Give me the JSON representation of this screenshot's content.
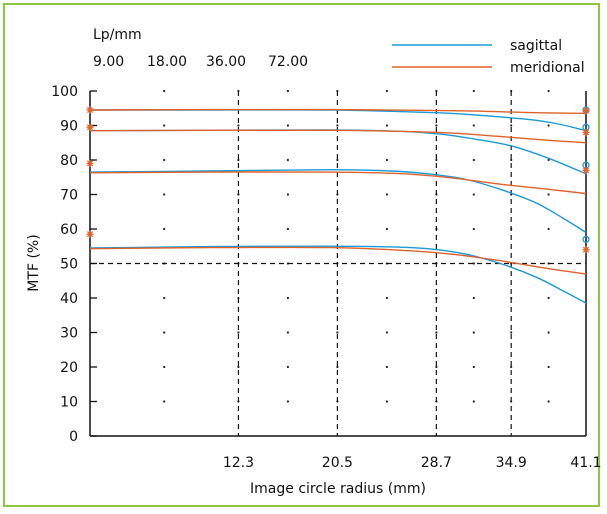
{
  "chart_data": {
    "type": "line",
    "xlabel": "Image circle radius (mm)",
    "ylabel": "MTF (%)",
    "xlim": [
      0,
      41.1
    ],
    "ylim": [
      0,
      100
    ],
    "y_ticks": [
      0,
      10,
      20,
      30,
      40,
      50,
      60,
      70,
      80,
      90,
      100
    ],
    "x_ticks": [
      12.3,
      20.5,
      28.7,
      34.9,
      41.1
    ],
    "x_tick_labels": [
      "12.3",
      "20.5",
      "28.7",
      "34.9",
      "41.1"
    ],
    "threshold": 50,
    "vertical_dashed": [
      12.3,
      20.5,
      28.7,
      34.9
    ],
    "frequency_header": "Lp/mm",
    "frequencies": [
      "9.00",
      "18.00",
      "36.00",
      "72.00"
    ],
    "legend": [
      {
        "name": "sagittal",
        "color": "#1a9ad6"
      },
      {
        "name": "meridional",
        "color": "#e0622a"
      }
    ],
    "series": [
      {
        "type": "sagittal",
        "x": [
          0,
          10,
          20,
          26,
          30,
          34,
          37,
          39,
          41.1
        ],
        "y": [
          94.5,
          94.5,
          94.5,
          94,
          93.5,
          92.5,
          91.5,
          90.3,
          88.5
        ]
      },
      {
        "type": "meridional",
        "x": [
          0,
          10,
          20,
          30,
          36,
          41.1
        ],
        "y": [
          94.5,
          94.6,
          94.6,
          94.3,
          93.8,
          93.5
        ]
      },
      {
        "type": "sagittal",
        "x": [
          0,
          10,
          20,
          26,
          29,
          32,
          35,
          38,
          41.1
        ],
        "y": [
          88.5,
          88.6,
          88.7,
          88.3,
          87.5,
          86,
          84,
          80.5,
          76
        ]
      },
      {
        "type": "meridional",
        "x": [
          0,
          10,
          20,
          26,
          30,
          34,
          38,
          41.1
        ],
        "y": [
          88.5,
          88.6,
          88.6,
          88.3,
          87.8,
          86.8,
          85.7,
          85
        ]
      },
      {
        "type": "sagittal",
        "x": [
          0,
          10,
          20,
          25,
          28,
          31,
          34,
          37,
          39.5,
          41.1
        ],
        "y": [
          76.5,
          76.8,
          77.2,
          76.8,
          76,
          74.5,
          71.5,
          67.5,
          62.5,
          59
        ]
      },
      {
        "type": "meridional",
        "x": [
          0,
          10,
          20,
          26,
          30,
          34,
          38,
          41.1
        ],
        "y": [
          76.3,
          76.5,
          76.5,
          76,
          74.8,
          73,
          71.5,
          70.3
        ]
      },
      {
        "type": "sagittal",
        "x": [
          0,
          10,
          20,
          25,
          28,
          31,
          34,
          37,
          39.5,
          41.1
        ],
        "y": [
          54.5,
          54.9,
          55,
          54.8,
          54.3,
          52.8,
          50,
          46,
          41.5,
          38.5
        ]
      },
      {
        "type": "meridional",
        "x": [
          0,
          10,
          20,
          26,
          30,
          34,
          38,
          41.1
        ],
        "y": [
          54.3,
          54.6,
          54.6,
          53.8,
          52.7,
          50.8,
          48.5,
          47
        ]
      }
    ],
    "left_markers": [
      94.5,
      89.5,
      79,
      58.5
    ],
    "right_markers": [
      {
        "type": "sagittal",
        "y": 94.5
      },
      {
        "type": "meridional",
        "y": 94.3
      },
      {
        "type": "sagittal",
        "y": 89.5
      },
      {
        "type": "meridional",
        "y": 88
      },
      {
        "type": "sagittal",
        "y": 78.5
      },
      {
        "type": "meridional",
        "y": 77
      },
      {
        "type": "sagittal",
        "y": 57
      },
      {
        "type": "meridional",
        "y": 54
      }
    ],
    "grid": "dotted"
  }
}
